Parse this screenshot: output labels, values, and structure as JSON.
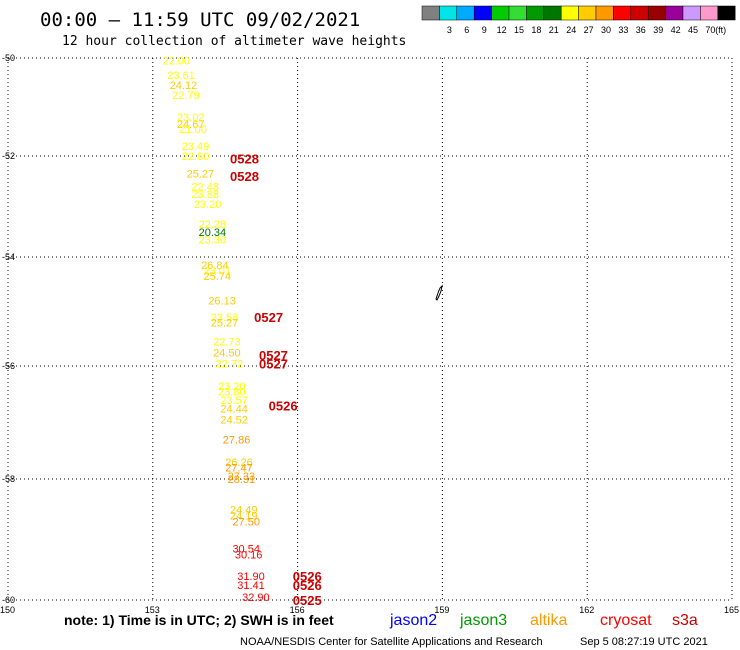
{
  "header": {
    "title": "00:00 – 11:59 UTC 09/02/2021",
    "subtitle": "12 hour collection of altimeter wave heights"
  },
  "legend": {
    "unit": "(ft)",
    "bins": [
      {
        "label": "",
        "color": "#808080"
      },
      {
        "label": "3",
        "color": "#00e5e5"
      },
      {
        "label": "6",
        "color": "#00aaff"
      },
      {
        "label": "9",
        "color": "#0000ff"
      },
      {
        "label": "12",
        "color": "#00cc00"
      },
      {
        "label": "15",
        "color": "#33dd33"
      },
      {
        "label": "18",
        "color": "#009900"
      },
      {
        "label": "21",
        "color": "#007700"
      },
      {
        "label": "24",
        "color": "#ffff00"
      },
      {
        "label": "27",
        "color": "#ffcc00"
      },
      {
        "label": "30",
        "color": "#ff9900"
      },
      {
        "label": "33",
        "color": "#ff0000"
      },
      {
        "label": "36",
        "color": "#cc0000"
      },
      {
        "label": "39",
        "color": "#990000"
      },
      {
        "label": "42",
        "color": "#990099"
      },
      {
        "label": "45",
        "color": "#cc99ff"
      },
      {
        "label": "70",
        "color": "#ff99cc"
      },
      {
        "label": "",
        "color": "#000000"
      }
    ]
  },
  "axes": {
    "x_ticks": [
      "150",
      "153",
      "156",
      "159",
      "162",
      "165"
    ],
    "x_values": [
      150,
      153,
      156,
      159,
      162,
      165
    ],
    "y_ticks": [
      "-50",
      "-52",
      "-54",
      "-56",
      "-58",
      "-60"
    ],
    "y_values": [
      -50,
      -52,
      -54,
      -56,
      -58,
      -60
    ]
  },
  "observations": [
    {
      "lon": 153.2,
      "lat": -50.05,
      "text": "22.00",
      "color": "#ffff00"
    },
    {
      "lon": 153.3,
      "lat": -50.35,
      "text": "23.61",
      "color": "#ffff00"
    },
    {
      "lon": 153.35,
      "lat": -50.55,
      "text": "24.12",
      "color": "#ffcc00"
    },
    {
      "lon": 153.4,
      "lat": -50.75,
      "text": "22.79",
      "color": "#ffff00"
    },
    {
      "lon": 153.5,
      "lat": -51.2,
      "text": "23.02",
      "color": "#ffff00"
    },
    {
      "lon": 153.5,
      "lat": -51.35,
      "text": "24.67",
      "color": "#ffcc00"
    },
    {
      "lon": 153.55,
      "lat": -51.45,
      "text": "21.00",
      "color": "#ffff00"
    },
    {
      "lon": 153.6,
      "lat": -51.8,
      "text": "23.49",
      "color": "#ffff00"
    },
    {
      "lon": 153.6,
      "lat": -52.0,
      "text": "22.80",
      "color": "#ffff00"
    },
    {
      "lon": 153.7,
      "lat": -52.35,
      "text": "25.27",
      "color": "#ffcc00"
    },
    {
      "lon": 153.8,
      "lat": -52.6,
      "text": "22.48",
      "color": "#ffff00"
    },
    {
      "lon": 153.8,
      "lat": -52.75,
      "text": "23.88",
      "color": "#ffff00"
    },
    {
      "lon": 153.85,
      "lat": -52.95,
      "text": "23.20",
      "color": "#ffff00"
    },
    {
      "lon": 153.95,
      "lat": -53.35,
      "text": "22.28",
      "color": "#ffff00"
    },
    {
      "lon": 153.95,
      "lat": -53.5,
      "text": "20.34",
      "color": "#007700"
    },
    {
      "lon": 153.95,
      "lat": -53.65,
      "text": "23.30",
      "color": "#ffff00"
    },
    {
      "lon": 154.0,
      "lat": -54.15,
      "text": "26.84",
      "color": "#ffcc00"
    },
    {
      "lon": 154.05,
      "lat": -54.25,
      "text": "23.01",
      "color": "#ffff00"
    },
    {
      "lon": 154.05,
      "lat": -54.35,
      "text": "25.74",
      "color": "#ffcc00"
    },
    {
      "lon": 154.15,
      "lat": -54.8,
      "text": "26.13",
      "color": "#ffcc00"
    },
    {
      "lon": 154.2,
      "lat": -55.1,
      "text": "23.58",
      "color": "#ffff00"
    },
    {
      "lon": 154.2,
      "lat": -55.2,
      "text": "25.27",
      "color": "#ffcc00"
    },
    {
      "lon": 154.25,
      "lat": -55.55,
      "text": "22.73",
      "color": "#ffff00"
    },
    {
      "lon": 154.25,
      "lat": -55.75,
      "text": "24.50",
      "color": "#ffcc00"
    },
    {
      "lon": 154.3,
      "lat": -55.95,
      "text": "22.72",
      "color": "#ffff00"
    },
    {
      "lon": 154.35,
      "lat": -56.35,
      "text": "23.20",
      "color": "#ffff00"
    },
    {
      "lon": 154.35,
      "lat": -56.45,
      "text": "23.80",
      "color": "#ffff00"
    },
    {
      "lon": 154.4,
      "lat": -56.6,
      "text": "23.57",
      "color": "#ffff00"
    },
    {
      "lon": 154.4,
      "lat": -56.75,
      "text": "24.44",
      "color": "#ffcc00"
    },
    {
      "lon": 154.4,
      "lat": -56.95,
      "text": "24.52",
      "color": "#ffcc00"
    },
    {
      "lon": 154.45,
      "lat": -57.3,
      "text": "27.86",
      "color": "#ff9900"
    },
    {
      "lon": 154.5,
      "lat": -57.7,
      "text": "26.26",
      "color": "#ffcc00"
    },
    {
      "lon": 154.5,
      "lat": -57.8,
      "text": "27.47",
      "color": "#ff9900"
    },
    {
      "lon": 154.55,
      "lat": -57.95,
      "text": "27.33",
      "color": "#ff9900"
    },
    {
      "lon": 154.55,
      "lat": -58.0,
      "text": "28.31",
      "color": "#ff9900"
    },
    {
      "lon": 154.6,
      "lat": -58.5,
      "text": "24.49",
      "color": "#ffcc00"
    },
    {
      "lon": 154.6,
      "lat": -58.6,
      "text": "24.19",
      "color": "#ffcc00"
    },
    {
      "lon": 154.65,
      "lat": -58.7,
      "text": "27.50",
      "color": "#ff9900"
    },
    {
      "lon": 154.65,
      "lat": -59.15,
      "text": "30.54",
      "color": "#ff0000"
    },
    {
      "lon": 154.7,
      "lat": -59.25,
      "text": "30.16",
      "color": "#ff0000"
    },
    {
      "lon": 154.75,
      "lat": -59.6,
      "text": "31.90",
      "color": "#ff0000"
    },
    {
      "lon": 154.75,
      "lat": -59.75,
      "text": "31.41",
      "color": "#ff0000"
    },
    {
      "lon": 154.85,
      "lat": -59.95,
      "text": "32.90",
      "color": "#ff0000"
    }
  ],
  "time_labels": [
    {
      "lon": 154.6,
      "lat": -52.05,
      "text": "0528",
      "color": "#cc0000"
    },
    {
      "lon": 154.6,
      "lat": -52.4,
      "text": "0528",
      "color": "#cc0000"
    },
    {
      "lon": 155.1,
      "lat": -55.1,
      "text": "0527",
      "color": "#cc0000"
    },
    {
      "lon": 155.2,
      "lat": -55.8,
      "text": "0527",
      "color": "#cc0000"
    },
    {
      "lon": 155.2,
      "lat": -55.95,
      "text": "0527",
      "color": "#cc0000"
    },
    {
      "lon": 155.4,
      "lat": -56.7,
      "text": "0526",
      "color": "#cc0000"
    },
    {
      "lon": 155.9,
      "lat": -59.6,
      "text": "0526",
      "color": "#cc0000"
    },
    {
      "lon": 155.9,
      "lat": -59.75,
      "text": "0526",
      "color": "#cc0000"
    },
    {
      "lon": 155.9,
      "lat": -60.0,
      "text": "0525",
      "color": "#cc0000"
    }
  ],
  "footer": {
    "note": "note:  1) Time is in UTC;  2) SWH is in feet",
    "satellites": [
      {
        "name": "jason2",
        "color": "#0000ff"
      },
      {
        "name": "jason3",
        "color": "#009900"
      },
      {
        "name": "altika",
        "color": "#ff9900"
      },
      {
        "name": "cryosat",
        "color": "#ff0000"
      },
      {
        "name": "s3a",
        "color": "#cc0000"
      }
    ],
    "credit": "NOAA/NESDIS Center for Satellite Applications and Research",
    "timestamp": "Sep  5 08:27:19 UTC 2021"
  },
  "colors": {
    "background": "#ffffff",
    "grid": "#000000",
    "coast": "#000000"
  }
}
